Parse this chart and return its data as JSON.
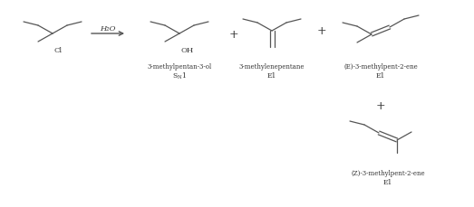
{
  "bg_color": "#ffffff",
  "line_color": "#555555",
  "text_color": "#333333",
  "fig_width": 5.23,
  "fig_height": 2.3,
  "dpi": 100,
  "cl_label": "Cl",
  "arrow_label": "H₂O",
  "oh_label": "OH",
  "p1_name": "3-methylpentan-3-ol",
  "p1_mech": "S_N1",
  "p2_name": "3-methylenepentane",
  "p2_mech": "E1",
  "p3_name": "(E)-3-methylpent-2-ene",
  "p3_mech": "E1",
  "p4_name": "(Z)-3-methylpent-2-ene",
  "p4_mech": "E1",
  "fs_label": 6.0,
  "fs_name": 5.0,
  "fs_mech": 5.5,
  "fs_plus": 9,
  "lw": 0.9
}
